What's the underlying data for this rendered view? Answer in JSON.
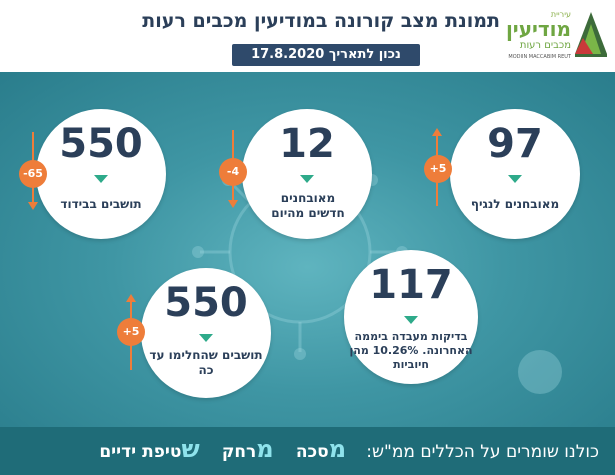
{
  "header": {
    "title": "תמונת מצב קורונה במודיעין מכבים רעות",
    "date": "נכון לתאריך 17.8.2020"
  },
  "logo": {
    "small": "עיריית",
    "main": "מודיעין",
    "sub": "מכבים רעות",
    "en": "MODIIN MACCABIM REUT"
  },
  "stats": [
    {
      "value": "97",
      "label": "מאובחנים לנגיף",
      "change": "+5",
      "trend": "up"
    },
    {
      "value": "12",
      "label": "מאובחנים חדשים מהיום",
      "change": "-4",
      "trend": "down"
    },
    {
      "value": "550",
      "label": "תושבים בבידוד",
      "change": "-65",
      "trend": "down"
    },
    {
      "value": "117",
      "label": "בדיקות מעבדה ביממה האחרונה. 10.26% מהן חיוביות"
    },
    {
      "value": "550",
      "label": "תושבים שהחלימו עד כה",
      "change": "+5",
      "trend": "up"
    }
  ],
  "footer": {
    "lead": "כולנו שומרים על הכללים ממ\"ש:",
    "mask_letter": "מ",
    "mask_rest": "סכה",
    "distance_letter": "מ",
    "distance_rest": "רחק",
    "hygiene_letter": "ש",
    "hygiene_rest": "טיפת ידיים"
  },
  "colors": {
    "navy": "#2b3f59",
    "teal": "#2eaa8a",
    "orange": "#ee7d3a",
    "footer_bg": "#1f6c78",
    "footer_highlight": "#8fe3ec"
  }
}
